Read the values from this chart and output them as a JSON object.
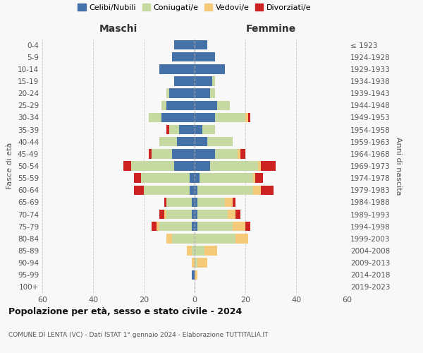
{
  "age_groups": [
    "0-4",
    "5-9",
    "10-14",
    "15-19",
    "20-24",
    "25-29",
    "30-34",
    "35-39",
    "40-44",
    "45-49",
    "50-54",
    "55-59",
    "60-64",
    "65-69",
    "70-74",
    "75-79",
    "80-84",
    "85-89",
    "90-94",
    "95-99",
    "100+"
  ],
  "birth_years": [
    "2019-2023",
    "2014-2018",
    "2009-2013",
    "2004-2008",
    "1999-2003",
    "1994-1998",
    "1989-1993",
    "1984-1988",
    "1979-1983",
    "1974-1978",
    "1969-1973",
    "1964-1968",
    "1959-1963",
    "1954-1958",
    "1949-1953",
    "1944-1948",
    "1939-1943",
    "1934-1938",
    "1929-1933",
    "1924-1928",
    "≤ 1923"
  ],
  "maschi": {
    "celibi": [
      8,
      9,
      14,
      8,
      10,
      11,
      13,
      6,
      7,
      9,
      8,
      2,
      2,
      1,
      1,
      1,
      0,
      0,
      0,
      1,
      0
    ],
    "coniugati": [
      0,
      0,
      0,
      0,
      1,
      2,
      5,
      4,
      7,
      8,
      17,
      19,
      18,
      10,
      10,
      13,
      9,
      1,
      0,
      0,
      0
    ],
    "vedovi": [
      0,
      0,
      0,
      0,
      0,
      0,
      0,
      0,
      0,
      0,
      0,
      0,
      0,
      0,
      1,
      1,
      2,
      2,
      1,
      0,
      0
    ],
    "divorziati": [
      0,
      0,
      0,
      0,
      0,
      0,
      0,
      1,
      0,
      1,
      3,
      3,
      4,
      1,
      2,
      2,
      0,
      0,
      0,
      0,
      0
    ]
  },
  "femmine": {
    "nubili": [
      5,
      8,
      12,
      7,
      6,
      9,
      8,
      3,
      5,
      8,
      6,
      2,
      1,
      1,
      1,
      1,
      0,
      0,
      0,
      0,
      0
    ],
    "coniugate": [
      0,
      0,
      0,
      1,
      2,
      5,
      12,
      5,
      10,
      9,
      19,
      21,
      22,
      11,
      12,
      14,
      16,
      4,
      1,
      0,
      0
    ],
    "vedove": [
      0,
      0,
      0,
      0,
      0,
      0,
      1,
      0,
      0,
      1,
      1,
      1,
      3,
      3,
      3,
      5,
      5,
      5,
      4,
      1,
      0
    ],
    "divorziate": [
      0,
      0,
      0,
      0,
      0,
      0,
      1,
      0,
      0,
      2,
      6,
      3,
      5,
      1,
      2,
      2,
      0,
      0,
      0,
      0,
      0
    ]
  },
  "colors": {
    "celibi": "#4472a8",
    "coniugati": "#c5d9a0",
    "vedovi": "#f5c97a",
    "divorziati": "#cc2222"
  },
  "legend_labels": [
    "Celibi/Nubili",
    "Coniugati/e",
    "Vedovi/e",
    "Divorziati/e"
  ],
  "title": "Popolazione per età, sesso e stato civile - 2024",
  "subtitle": "COMUNE DI LENTA (VC) - Dati ISTAT 1° gennaio 2024 - Elaborazione TUTTITALIA.IT",
  "xlabel_left": "Maschi",
  "xlabel_right": "Femmine",
  "ylabel_left": "Fasce di età",
  "ylabel_right": "Anni di nascita",
  "xlim": 60,
  "background_color": "#f8f8f8"
}
